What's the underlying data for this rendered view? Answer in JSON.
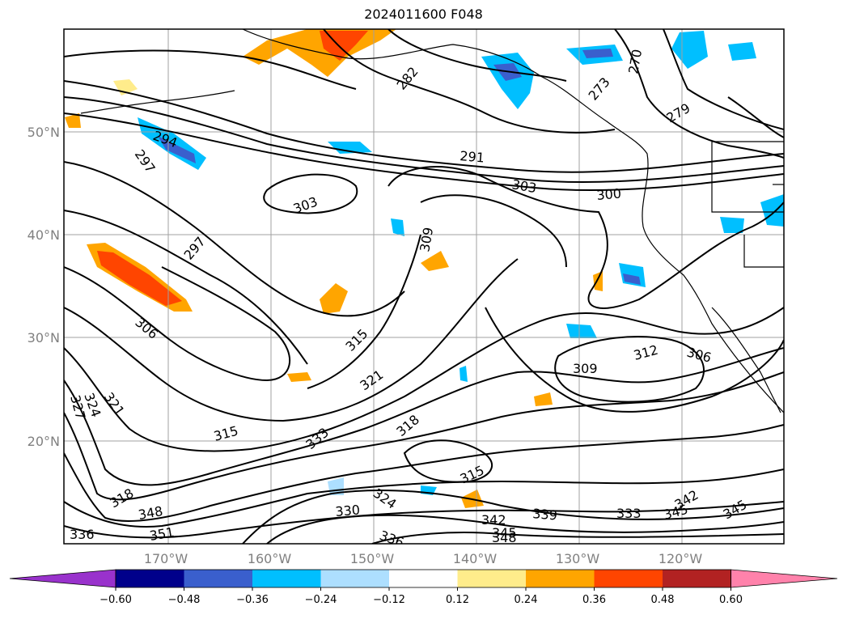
{
  "title": "2024011600 F048",
  "lat_labels": [
    "50°N",
    "40°N",
    "30°N",
    "20°N"
  ],
  "lon_labels": [
    "170°W",
    "160°W",
    "150°W",
    "140°W",
    "130°W",
    "120°W"
  ],
  "colorbar": {
    "colors": [
      "#9932CC",
      "#00008B",
      "#3A5FCD",
      "#00BFFF",
      "#ADDFFF",
      "#FFFFFF",
      "#FFEC8B",
      "#FFA500",
      "#FF4500",
      "#B22222",
      "#FF82AB"
    ],
    "ticks": [
      "−0.60",
      "−0.48",
      "−0.36",
      "−0.24",
      "−0.12",
      "0.12",
      "0.24",
      "0.36",
      "0.48",
      "0.60"
    ]
  },
  "contour_labels": [
    {
      "text": "282"
    },
    {
      "text": "273"
    },
    {
      "text": "270"
    },
    {
      "text": "279"
    },
    {
      "text": "294"
    },
    {
      "text": "297"
    },
    {
      "text": "291"
    },
    {
      "text": "303"
    },
    {
      "text": "303"
    },
    {
      "text": "300"
    },
    {
      "text": "297"
    },
    {
      "text": "309"
    },
    {
      "text": "306"
    },
    {
      "text": "315"
    },
    {
      "text": "321"
    },
    {
      "text": "312"
    },
    {
      "text": "306"
    },
    {
      "text": "309"
    },
    {
      "text": "327"
    },
    {
      "text": "324"
    },
    {
      "text": "321"
    },
    {
      "text": "315"
    },
    {
      "text": "318"
    },
    {
      "text": "333"
    },
    {
      "text": "318"
    },
    {
      "text": "315"
    },
    {
      "text": "324"
    },
    {
      "text": "330"
    },
    {
      "text": "342"
    },
    {
      "text": "339"
    },
    {
      "text": "333"
    },
    {
      "text": "345"
    },
    {
      "text": "342"
    },
    {
      "text": "345"
    },
    {
      "text": "348"
    },
    {
      "text": "351"
    },
    {
      "text": "336"
    },
    {
      "text": "336"
    },
    {
      "text": "345"
    },
    {
      "text": "348"
    }
  ]
}
